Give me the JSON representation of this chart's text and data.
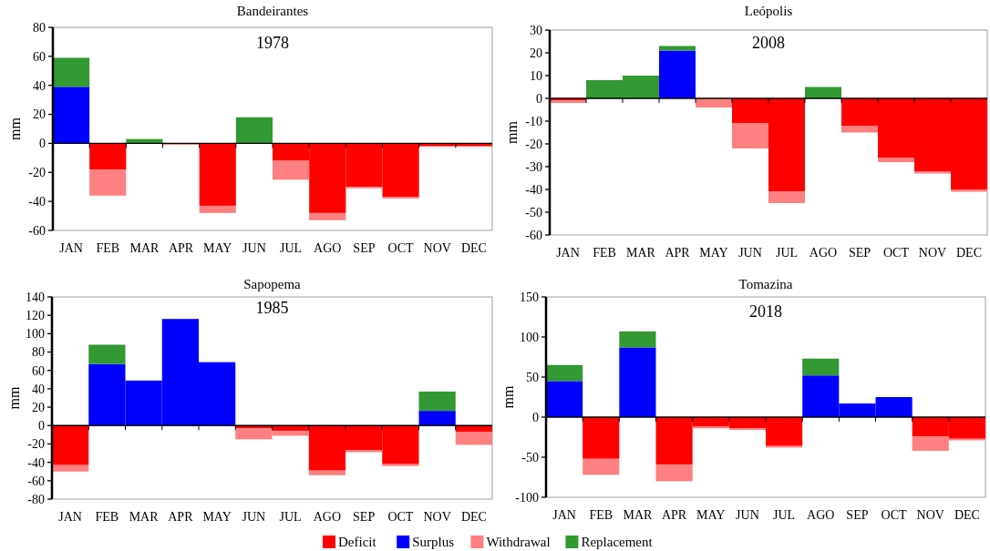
{
  "chart_data": [
    {
      "type": "bar",
      "stacked": true,
      "title": "Bandeirantes",
      "subtitle": "1978",
      "ylabel": "mm",
      "categories": [
        "JAN",
        "FEB",
        "MAR",
        "APR",
        "MAY",
        "JUN",
        "JUL",
        "AGO",
        "SEP",
        "OCT",
        "NOV",
        "DEC"
      ],
      "ylim": [
        -60,
        80
      ],
      "yticks": [
        -60,
        -40,
        -20,
        0,
        20,
        40,
        60,
        80
      ],
      "series": [
        {
          "color": "#ff0000",
          "values": [
            0,
            -18,
            0,
            0,
            -43,
            0,
            -12,
            -48,
            -30,
            -37,
            -2,
            -2
          ]
        },
        {
          "color": "#0000ff",
          "values": [
            39,
            0,
            0,
            0,
            0,
            0,
            0,
            0,
            0,
            0,
            0,
            0
          ]
        },
        {
          "color": "#ff8080",
          "values": [
            0,
            -18,
            0,
            -1,
            -5,
            0,
            -13,
            -5,
            -1,
            -1,
            0,
            0
          ]
        },
        {
          "color": "#339933",
          "values": [
            20,
            0,
            3,
            0,
            0,
            18,
            0,
            0,
            0,
            0,
            0,
            0
          ]
        }
      ]
    },
    {
      "type": "bar",
      "stacked": true,
      "title": "Leópolis",
      "subtitle": "2008",
      "ylabel": "mm",
      "categories": [
        "JAN",
        "FEB",
        "MAR",
        "APR",
        "MAY",
        "JUN",
        "JUL",
        "AGO",
        "SEP",
        "OCT",
        "NOV",
        "DEC"
      ],
      "ylim": [
        -60,
        30
      ],
      "yticks": [
        -60,
        -50,
        -40,
        -30,
        -20,
        -10,
        0,
        10,
        20,
        30
      ],
      "series": [
        {
          "color": "#ff0000",
          "values": [
            -1,
            0,
            0,
            0,
            0,
            -11,
            -41,
            0,
            -12,
            -26,
            -32,
            -40
          ]
        },
        {
          "color": "#0000ff",
          "values": [
            0,
            0,
            0,
            21,
            0,
            0,
            0,
            0,
            0,
            0,
            0,
            0
          ]
        },
        {
          "color": "#ff8080",
          "values": [
            -1,
            0,
            0,
            0,
            -4,
            -11,
            -5,
            0,
            -3,
            -2,
            -1,
            -1
          ]
        },
        {
          "color": "#339933",
          "values": [
            0,
            8,
            10,
            2,
            0,
            0,
            0,
            5,
            0,
            0,
            0,
            0
          ]
        }
      ]
    },
    {
      "type": "bar",
      "stacked": true,
      "title": "Sapopema",
      "subtitle": "1985",
      "ylabel": "mm",
      "categories": [
        "JAN",
        "FEB",
        "MAR",
        "APR",
        "MAY",
        "JUN",
        "JUL",
        "AGO",
        "SEP",
        "OCT",
        "NOV",
        "DEC"
      ],
      "ylim": [
        -80,
        140
      ],
      "yticks": [
        -80,
        -60,
        -40,
        -20,
        0,
        20,
        40,
        60,
        80,
        100,
        120,
        140
      ],
      "series": [
        {
          "color": "#ff0000",
          "values": [
            -43,
            0,
            0,
            0,
            0,
            -3,
            -6,
            -49,
            -27,
            -42,
            0,
            -7
          ]
        },
        {
          "color": "#0000ff",
          "values": [
            0,
            67,
            49,
            116,
            69,
            0,
            0,
            0,
            0,
            0,
            16,
            0
          ]
        },
        {
          "color": "#ff8080",
          "values": [
            -7,
            0,
            0,
            0,
            0,
            -12,
            -5,
            -5,
            -2,
            -2,
            0,
            -14
          ]
        },
        {
          "color": "#339933",
          "values": [
            0,
            21,
            0,
            0,
            0,
            0,
            0,
            0,
            0,
            0,
            21,
            0
          ]
        }
      ]
    },
    {
      "type": "bar",
      "stacked": true,
      "title": "Tomazina",
      "subtitle": "2018",
      "ylabel": "mm",
      "legend": "bottom",
      "categories": [
        "JAN",
        "FEB",
        "MAR",
        "APR",
        "MAY",
        "JUN",
        "JUL",
        "AGO",
        "SEP",
        "OCT",
        "NOV",
        "DEC"
      ],
      "ylim": [
        -100,
        150
      ],
      "yticks": [
        -100,
        -50,
        0,
        50,
        100,
        150
      ],
      "series": [
        {
          "name": "Deficit",
          "color": "#ff0000",
          "values": [
            0,
            -52,
            0,
            -59,
            -12,
            -14,
            -36,
            0,
            0,
            0,
            -24,
            -27
          ]
        },
        {
          "name": "Surplus",
          "color": "#0000ff",
          "values": [
            45,
            0,
            87,
            0,
            0,
            0,
            0,
            52,
            17,
            25,
            0,
            0
          ]
        },
        {
          "name": "Withdrawal",
          "color": "#ff8080",
          "values": [
            0,
            -20,
            0,
            -21,
            -2,
            -2,
            -2,
            0,
            0,
            0,
            -18,
            -2
          ]
        },
        {
          "name": "Replacement",
          "color": "#339933",
          "values": [
            20,
            0,
            20,
            0,
            0,
            0,
            0,
            21,
            0,
            0,
            0,
            0
          ]
        }
      ]
    }
  ]
}
